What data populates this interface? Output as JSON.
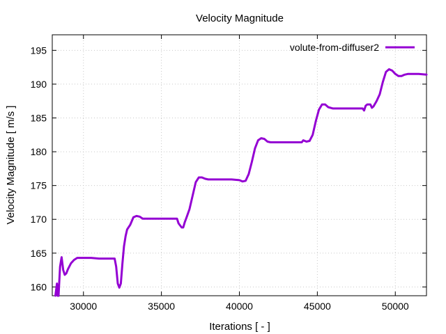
{
  "chart_data": {
    "type": "line",
    "title": "Velocity Magnitude",
    "xlabel": "Iterations [ - ]",
    "ylabel": "Velocity Magnitude [ m/s ]",
    "xlim": [
      28000,
      52000
    ],
    "ylim": [
      158.7,
      197.3
    ],
    "xticks": [
      30000,
      35000,
      40000,
      45000,
      50000
    ],
    "yticks": [
      160,
      165,
      170,
      175,
      180,
      185,
      190,
      195
    ],
    "grid": true,
    "legend_position": "top-right",
    "series": [
      {
        "name": "volute-from-diffuser2",
        "color": "#9400d3",
        "x": [
          28200,
          28300,
          28350,
          28400,
          28500,
          28600,
          28700,
          28800,
          28900,
          29000,
          29200,
          29400,
          29600,
          29800,
          30000,
          30500,
          31000,
          31500,
          32000,
          32100,
          32200,
          32300,
          32400,
          32500,
          32600,
          32700,
          32800,
          33000,
          33200,
          33400,
          33600,
          33800,
          34000,
          34500,
          35000,
          35500,
          36000,
          36100,
          36200,
          36300,
          36400,
          36500,
          36600,
          36800,
          37000,
          37200,
          37400,
          37600,
          37800,
          38000,
          38500,
          39000,
          39500,
          40000,
          40200,
          40400,
          40600,
          40800,
          41000,
          41200,
          41400,
          41600,
          41800,
          42000,
          42500,
          43000,
          43500,
          44000,
          44100,
          44300,
          44500,
          44700,
          44900,
          45100,
          45300,
          45500,
          45700,
          46000,
          46500,
          47000,
          47500,
          47900,
          48000,
          48100,
          48200,
          48400,
          48500,
          48600,
          48800,
          49000,
          49200,
          49400,
          49600,
          49800,
          50000,
          50200,
          50400,
          50600,
          50800,
          51000,
          51500,
          52000
        ],
        "y": [
          158.7,
          160.5,
          158.7,
          158.7,
          163.0,
          164.4,
          162.5,
          161.8,
          162.0,
          162.6,
          163.5,
          164.0,
          164.3,
          164.3,
          164.3,
          164.3,
          164.2,
          164.2,
          164.2,
          163.0,
          160.5,
          159.9,
          160.5,
          163.5,
          166.0,
          167.5,
          168.5,
          169.2,
          170.3,
          170.5,
          170.4,
          170.1,
          170.1,
          170.1,
          170.1,
          170.1,
          170.1,
          169.4,
          169.1,
          168.8,
          168.8,
          169.6,
          170.2,
          171.5,
          173.5,
          175.5,
          176.2,
          176.2,
          176.0,
          175.9,
          175.9,
          175.9,
          175.9,
          175.8,
          175.6,
          175.7,
          176.7,
          178.5,
          180.5,
          181.7,
          182.0,
          181.9,
          181.5,
          181.4,
          181.4,
          181.4,
          181.4,
          181.4,
          181.7,
          181.5,
          181.6,
          182.5,
          184.5,
          186.2,
          187.0,
          187.0,
          186.6,
          186.4,
          186.4,
          186.4,
          186.4,
          186.4,
          186.1,
          186.8,
          187.0,
          187.0,
          186.5,
          186.7,
          187.5,
          188.5,
          190.3,
          191.8,
          192.2,
          192.0,
          191.5,
          191.2,
          191.2,
          191.4,
          191.5,
          191.5,
          191.5,
          191.4
        ]
      }
    ]
  }
}
